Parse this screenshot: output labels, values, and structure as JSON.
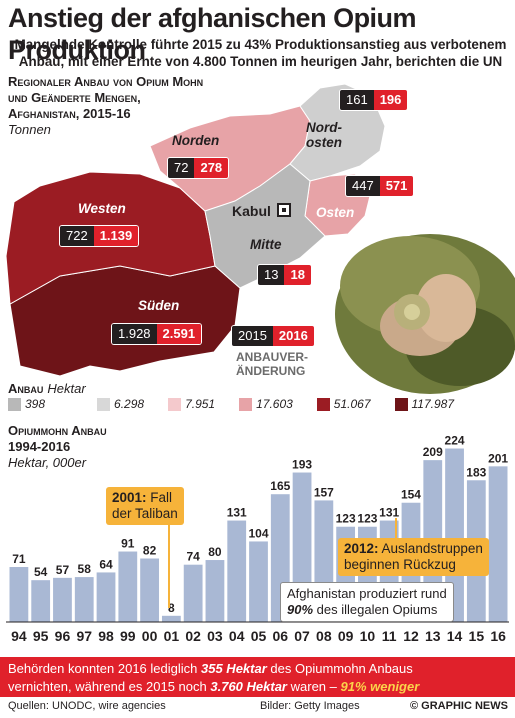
{
  "title": "Anstieg der afghanischen Opium Produktion",
  "subtitle_line1": "Mangelnde Kontrolle führte 2015 zu 43% Produktionsanstieg aus verbotenem",
  "subtitle_line2": "Anbau, mit einer Ernte von 4.800 Tonnen im heurigen Jahr, berichten die UN",
  "map_section": {
    "heading_line1": "Regionaler Anbau von Opium Mohn",
    "heading_line2": "und Geänderte Mengen,",
    "heading_line3": "Afghanistan, 2015-16",
    "unit": "Tonnen",
    "capital": "Kabul",
    "change_label_line1": "ANBAUVER-",
    "change_label_line2": "ÄNDERUNG",
    "key_2015": "2015",
    "key_2016": "2016",
    "regions": [
      {
        "name": "Norden",
        "v2015": "72",
        "v2016": "278",
        "color": "#e7a3a7"
      },
      {
        "name": "Nord-",
        "name2": "osten",
        "v2015": "161",
        "v2016": "196",
        "color": "#cfcfcf"
      },
      {
        "name": "Osten",
        "v2015": "447",
        "v2016": "571",
        "color": "#e7a3a7"
      },
      {
        "name": "Westen",
        "v2015": "722",
        "v2016": "1.139",
        "color": "#9b1c23"
      },
      {
        "name": "Mitte",
        "v2015": "13",
        "v2016": "18",
        "color": "#b8b8b8"
      },
      {
        "name": "Süden",
        "v2015": "1.928",
        "v2016": "2.591",
        "color": "#6e1418"
      }
    ]
  },
  "legend": {
    "label": "Anbau",
    "unit": "Hektar",
    "items": [
      {
        "text": "398",
        "color": "#b8b8b8"
      },
      {
        "text": "6.298",
        "color": "#d8d8d8"
      },
      {
        "text": "7.951",
        "color": "#f4c9cc"
      },
      {
        "text": "17.603",
        "color": "#e7a3a7"
      },
      {
        "text": "51.067",
        "color": "#9b1c23"
      },
      {
        "text": "117.987",
        "color": "#6e1418"
      }
    ]
  },
  "watermark": "GRAPHIC NEWS",
  "chart_data": {
    "type": "bar",
    "title": "Opiummohn Anbau 1994-2016",
    "unit": "Hektar, 000er",
    "categories": [
      "94",
      "95",
      "96",
      "97",
      "98",
      "99",
      "00",
      "01",
      "02",
      "03",
      "04",
      "05",
      "06",
      "07",
      "08",
      "09",
      "10",
      "11",
      "12",
      "13",
      "14",
      "15",
      "16"
    ],
    "values": [
      71,
      54,
      57,
      58,
      64,
      91,
      82,
      8,
      74,
      80,
      131,
      104,
      165,
      193,
      157,
      123,
      123,
      131,
      154,
      209,
      224,
      183,
      201
    ],
    "ylim": [
      0,
      235
    ],
    "bar_color": "#a9b8d4",
    "label_color": "#231f20"
  },
  "chart_heading_line1": "Opiummohn Anbau",
  "chart_heading_line2": "1994-2016",
  "chart_unit": "Hektar, 000er",
  "callouts": {
    "c2001_year": "2001:",
    "c2001_text1": "Fall",
    "c2001_text2": "der Taliban",
    "c2012_year": "2012:",
    "c2012_text1": "Auslandstruppen",
    "c2012_text2": "beginnen Rückzug",
    "note_line1": "Afghanistan produziert rund",
    "note_pct": "90%",
    "note_line2": "des illegalen Opiums"
  },
  "footer": {
    "pre": "Behörden konnten 2016 lediglich",
    "v1": "355 Hektar",
    "mid": "des Opiummohn Anbaus",
    "line2_pre": "vernichten, während es 2015 noch",
    "v2": "3.760 Hektar",
    "line2_mid": "waren –",
    "v3": "91% weniger"
  },
  "sources": "Quellen: UNODC, wire agencies",
  "credits": "Bilder: Getty Images",
  "brand": "© GRAPHIC NEWS"
}
